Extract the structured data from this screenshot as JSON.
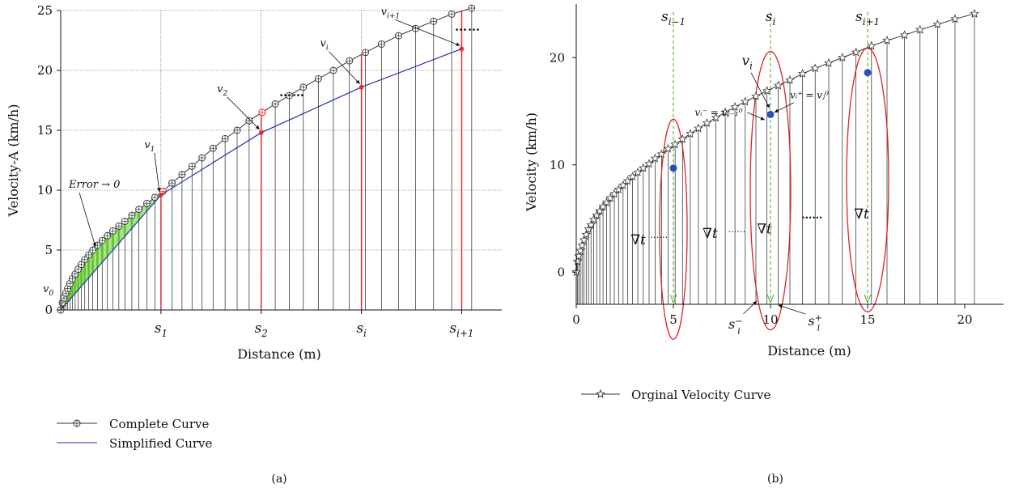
{
  "chart_data": [
    {
      "type": "line",
      "panel_label": "(a)",
      "xlabel": "Distance (m)",
      "ylabel": "Velocity-A (km/h)",
      "ylim": [
        0,
        25
      ],
      "yticks": [
        0,
        5,
        10,
        15,
        20,
        25
      ],
      "xlim": [
        0,
        22
      ],
      "xtick_values": [
        5,
        10,
        15,
        20
      ],
      "xtick_labels": [
        {
          "base": "s",
          "sub": "1"
        },
        {
          "base": "s",
          "sub": "2"
        },
        {
          "base": "s",
          "sub": "i"
        },
        {
          "base": "s",
          "sub": "i+1"
        }
      ],
      "grid": true,
      "legend_position": "bottom-left",
      "legend": [
        {
          "label": "Complete Curve",
          "color": "#333333",
          "marker": "circle-plus"
        },
        {
          "label": "Simplified Curve",
          "color": "#2233aa",
          "marker": "none"
        }
      ],
      "series": [
        {
          "name": "Complete Curve",
          "color": "#333333",
          "x": [
            0,
            0.08,
            0.16,
            0.25,
            0.35,
            0.46,
            0.58,
            0.72,
            0.87,
            1.03,
            1.2,
            1.4,
            1.6,
            1.83,
            2.07,
            2.33,
            2.6,
            2.9,
            3.2,
            3.55,
            3.9,
            4.3,
            4.7,
            5.1,
            5.55,
            6.05,
            6.55,
            7.05,
            7.6,
            8.2,
            8.8,
            9.4,
            10.05,
            10.7,
            11.4,
            12.1,
            12.85,
            13.6,
            14.4,
            15.2,
            16.0,
            16.85,
            17.7,
            18.6,
            19.5,
            20.5
          ],
          "y": [
            0.0,
            0.6,
            1.0,
            1.4,
            1.8,
            2.2,
            2.6,
            3.0,
            3.4,
            3.8,
            4.2,
            4.6,
            5.0,
            5.4,
            5.8,
            6.2,
            6.6,
            7.0,
            7.4,
            7.9,
            8.4,
            8.9,
            9.4,
            9.9,
            10.6,
            11.3,
            12.0,
            12.7,
            13.5,
            14.3,
            15.0,
            15.8,
            16.5,
            17.2,
            17.9,
            18.6,
            19.3,
            20.0,
            20.8,
            21.5,
            22.2,
            22.9,
            23.5,
            24.1,
            24.7,
            25.2
          ]
        },
        {
          "name": "Simplified Curve",
          "color": "#2233aa",
          "x": [
            0,
            5.0,
            10.0,
            15.0,
            20.0
          ],
          "y": [
            0,
            9.6,
            14.8,
            18.6,
            21.8
          ]
        }
      ],
      "point_labels": [
        {
          "base": "v",
          "sub": "0"
        },
        {
          "base": "v",
          "sub": "1"
        },
        {
          "base": "v",
          "sub": "2"
        },
        {
          "base": "v",
          "sub": "i"
        },
        {
          "base": "v",
          "sub": "i+1"
        }
      ],
      "annotation_error": "Error → 0",
      "dots": "……"
    },
    {
      "type": "line",
      "panel_label": "(b)",
      "xlabel": "Distance (m)",
      "ylabel": "Velocity (km/h)",
      "xlim": [
        0,
        22
      ],
      "xticks": [
        0,
        5,
        10,
        15,
        20
      ],
      "ylim": [
        -3,
        25
      ],
      "yticks": [
        0,
        10,
        20
      ],
      "legend_position": "bottom-left",
      "legend": [
        {
          "label": "Orginal Velocity Curve",
          "color": "#333333",
          "marker": "star"
        }
      ],
      "series": [
        {
          "name": "Orginal Velocity Curve",
          "color": "#333333",
          "x": [
            0,
            0.06,
            0.13,
            0.21,
            0.3,
            0.4,
            0.51,
            0.63,
            0.76,
            0.9,
            1.05,
            1.21,
            1.38,
            1.56,
            1.75,
            1.96,
            2.18,
            2.41,
            2.65,
            2.9,
            3.17,
            3.45,
            3.75,
            4.06,
            4.39,
            4.73,
            5.09,
            5.47,
            5.87,
            6.29,
            6.73,
            7.19,
            7.67,
            8.17,
            8.7,
            9.25,
            9.82,
            10.4,
            11.0,
            11.65,
            12.3,
            13.0,
            13.7,
            14.4,
            15.2,
            16.0,
            16.9,
            17.7,
            18.6,
            19.5,
            20.5
          ],
          "y": [
            0,
            1.0,
            1.5,
            2.0,
            2.5,
            3.0,
            3.5,
            4.0,
            4.4,
            4.9,
            5.3,
            5.7,
            6.1,
            6.5,
            6.9,
            7.3,
            7.7,
            8.1,
            8.5,
            8.9,
            9.3,
            9.7,
            10.1,
            10.6,
            11.0,
            11.5,
            11.9,
            12.4,
            12.9,
            13.4,
            13.9,
            14.4,
            14.9,
            15.4,
            15.9,
            16.4,
            16.9,
            17.4,
            17.9,
            18.5,
            19.0,
            19.5,
            20.0,
            20.5,
            21.1,
            21.6,
            22.1,
            22.6,
            23.1,
            23.6,
            24.1
          ]
        }
      ],
      "highlight_points": [
        {
          "x": 5.0,
          "y": 9.7
        },
        {
          "x": 10.0,
          "y": 14.7
        },
        {
          "x": 15.0,
          "y": 18.6
        }
      ],
      "section_lines": [
        {
          "x": 5.0,
          "label_base": "s",
          "label_sub": "i−1"
        },
        {
          "x": 10.0,
          "label_base": "s",
          "label_sub": "i"
        },
        {
          "x": 15.0,
          "label_base": "s",
          "label_sub": "i+1"
        }
      ],
      "annotations": {
        "vi": {
          "base": "v",
          "sub": "i"
        },
        "vi_minus": "vᵢ⁻ = vⱼ₋₁⁰",
        "vi_plus": "vᵢ⁺ = vⱼ⁰",
        "si_minus": {
          "base": "s",
          "sub": "i",
          "sup": "−"
        },
        "si_plus": {
          "base": "s",
          "sub": "i",
          "sup": "+"
        },
        "nabla_t": "∇t",
        "dots": "……"
      }
    }
  ]
}
